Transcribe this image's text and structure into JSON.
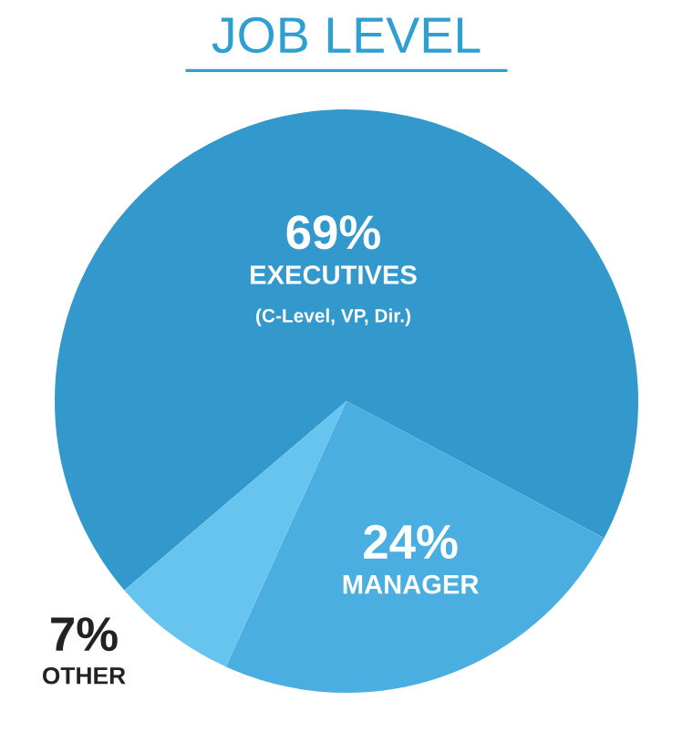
{
  "chart_data": {
    "type": "pie",
    "title": "JOB LEVEL",
    "categories": [
      "EXECUTIVES",
      "MANAGER",
      "OTHER"
    ],
    "values": [
      69,
      24,
      7
    ],
    "value_labels": [
      "69%",
      "24%",
      "7%"
    ],
    "colors": [
      "#3399cc",
      "#4aaee0",
      "#66c4ee"
    ],
    "annotations": [
      "(C-Level, VP, Dir.)"
    ]
  }
}
